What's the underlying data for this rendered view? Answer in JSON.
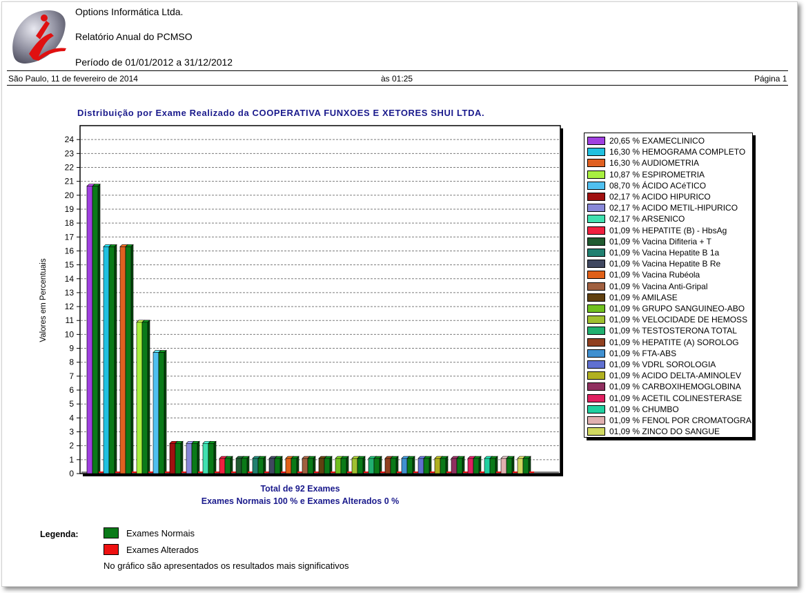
{
  "header": {
    "company": "Options Informática Ltda.",
    "report_title": "Relatório Anual do PCMSO",
    "period": "Período de 01/01/2012 a 31/12/2012",
    "date_line": "São Paulo, 11 de fevereiro de 2014",
    "time_line": "às 01:25",
    "page_label": "Página 1"
  },
  "chart_data": {
    "type": "bar",
    "title": "Distribuição por Exame Realizado da  COOPERATIVA FUNXOES E XETORES SHUI LTDA.",
    "ylabel": "Valores em Percentuais",
    "xlabel": "",
    "ylim": [
      0,
      25
    ],
    "yticks": [
      0,
      1,
      2,
      3,
      4,
      5,
      6,
      7,
      8,
      9,
      10,
      11,
      12,
      13,
      14,
      15,
      16,
      17,
      18,
      19,
      20,
      21,
      22,
      23,
      24
    ],
    "grid": true,
    "legend_position": "right",
    "categories": [
      {
        "label": "20,65 % EXAMECLINICO",
        "value": 20.65,
        "color": "#a040e0"
      },
      {
        "label": "16,30 % HEMOGRAMA COMPLETO",
        "value": 16.3,
        "color": "#20c0e0"
      },
      {
        "label": "16,30 % AUDIOMETRIA",
        "value": 16.3,
        "color": "#e06020"
      },
      {
        "label": "10,87 % ESPIROMETRIA",
        "value": 10.87,
        "color": "#a8f040"
      },
      {
        "label": "08,70 % ÁCIDO ACéTICO",
        "value": 8.7,
        "color": "#50c0f0"
      },
      {
        "label": "02,17 % ACIDO HIPURICO",
        "value": 2.17,
        "color": "#a01010"
      },
      {
        "label": "02,17 % ACIDO METIL-HIPURICO",
        "value": 2.17,
        "color": "#8888d8"
      },
      {
        "label": "02,17 % ARSENICO",
        "value": 2.17,
        "color": "#40e0b0"
      },
      {
        "label": "01,09 % HEPATITE (B) - HbsAg",
        "value": 1.09,
        "color": "#f02040"
      },
      {
        "label": "01,09 % Vacina Difiteria + T",
        "value": 1.09,
        "color": "#205a30"
      },
      {
        "label": "01,09 % Vacina Hepatite B 1a",
        "value": 1.09,
        "color": "#208070"
      },
      {
        "label": "01,09 % Vacina Hepatite B Re",
        "value": 1.09,
        "color": "#404860"
      },
      {
        "label": "01,09 % Vacina Rubéola",
        "value": 1.09,
        "color": "#e06018"
      },
      {
        "label": "01,09 % Vacina Anti-Gripal",
        "value": 1.09,
        "color": "#a06040"
      },
      {
        "label": "01,09 % AMILASE",
        "value": 1.09,
        "color": "#604010"
      },
      {
        "label": "01,09 % GRUPO SANGUINEO-ABO",
        "value": 1.09,
        "color": "#70c020"
      },
      {
        "label": "01,09 % VELOCIDADE DE HEMOSS",
        "value": 1.09,
        "color": "#a0c030"
      },
      {
        "label": "01,09 % TESTOSTERONA TOTAL",
        "value": 1.09,
        "color": "#20b070"
      },
      {
        "label": "01,09 % HEPATITE (A) SOROLOG",
        "value": 1.09,
        "color": "#904020"
      },
      {
        "label": "01,09 % FTA-ABS",
        "value": 1.09,
        "color": "#4090d0"
      },
      {
        "label": "01,09 % VDRL SOROLOGIA",
        "value": 1.09,
        "color": "#6070d0"
      },
      {
        "label": "01,09 % ACIDO DELTA-AMINOLEV",
        "value": 1.09,
        "color": "#b0b020"
      },
      {
        "label": "01,09 % CARBOXIHEMOGLOBINA",
        "value": 1.09,
        "color": "#903060"
      },
      {
        "label": "01,09 % ACETIL COLINESTERASE",
        "value": 1.09,
        "color": "#e02060"
      },
      {
        "label": "01,09 % CHUMBO",
        "value": 1.09,
        "color": "#20d0a0"
      },
      {
        "label": "01,09 % FENOL POR CROMATOGRA",
        "value": 1.09,
        "color": "#e0b0b0"
      },
      {
        "label": "01,09 % ZINCO DO SANGUE",
        "value": 1.09,
        "color": "#d0d860"
      }
    ],
    "series": [
      {
        "name": "Exames Normais",
        "color": "#0a7a18",
        "values": [
          20.65,
          16.3,
          16.3,
          10.87,
          8.7,
          2.17,
          2.17,
          2.17,
          1.09,
          1.09,
          1.09,
          1.09,
          1.09,
          1.09,
          1.09,
          1.09,
          1.09,
          1.09,
          1.09,
          1.09,
          1.09,
          1.09,
          1.09,
          1.09,
          1.09,
          1.09,
          1.09
        ]
      },
      {
        "name": "Exames Alterados",
        "color": "#ee1111",
        "values": [
          0,
          0,
          0,
          0,
          0,
          0,
          0,
          0,
          0,
          0,
          0,
          0,
          0,
          0,
          0,
          0,
          0,
          0,
          0,
          0,
          0,
          0,
          0,
          0,
          0,
          0,
          0
        ]
      }
    ]
  },
  "summary": {
    "total": "Total de 92 Exames",
    "normal_altered": "Exames Normais 100 %   e Exames Alterados 0 %"
  },
  "legend": {
    "label": "Legenda:",
    "normal": "Exames Normais",
    "altered": "Exames Alterados",
    "normal_color": "#0a7a18",
    "altered_color": "#ee1111",
    "note": "No gráfico são apresentados os resultados mais significativos"
  }
}
